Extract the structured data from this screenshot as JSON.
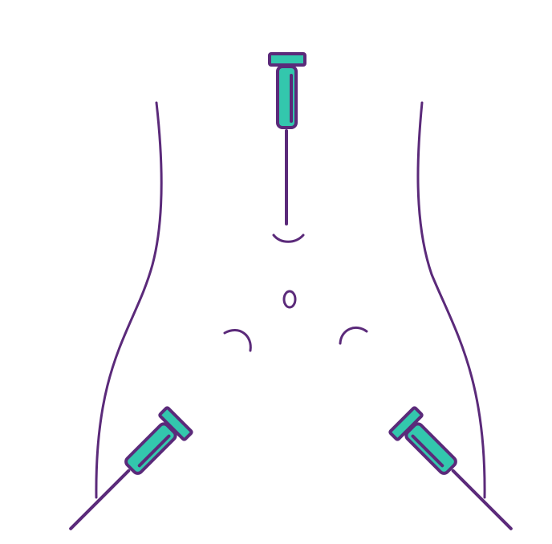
{
  "illustration": {
    "subject": "injection-sites-on-lower-abdomen",
    "icons": [
      "syringe-icon",
      "syringe-icon",
      "syringe-icon",
      "navel-icon"
    ],
    "colors": {
      "outline": "#5b2a7a",
      "syringe_fill": "#33c7ad",
      "background": "#ffffff"
    }
  }
}
